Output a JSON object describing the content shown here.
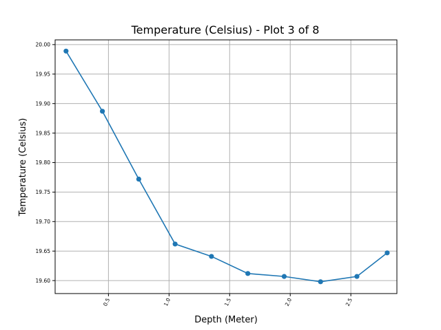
{
  "chart_data": {
    "type": "line",
    "title": "Temperature (Celsius) - Plot 3 of 8",
    "xlabel": "Depth (Meter)",
    "ylabel": "Temperature (Celsius)",
    "xlim": [
      0.06,
      2.88
    ],
    "ylim": [
      19.578,
      20.008
    ],
    "xticks": [
      0.5,
      1.0,
      1.5,
      2.0,
      2.5
    ],
    "xtick_labels": [
      "0.5",
      "1.0",
      "1.5",
      "2.0",
      "2.5"
    ],
    "yticks": [
      19.6,
      19.65,
      19.7,
      19.75,
      19.8,
      19.85,
      19.9,
      19.95,
      20.0
    ],
    "ytick_labels": [
      "19.60",
      "19.65",
      "19.70",
      "19.75",
      "19.80",
      "19.85",
      "19.90",
      "19.95",
      "20.00"
    ],
    "grid": true,
    "series": [
      {
        "color": "#1f77b4",
        "marker": "circle",
        "x": [
          0.15,
          0.45,
          0.75,
          1.05,
          1.35,
          1.65,
          1.95,
          2.25,
          2.55,
          2.8
        ],
        "y": [
          19.989,
          19.887,
          19.772,
          19.662,
          19.641,
          19.612,
          19.607,
          19.598,
          19.607,
          19.647
        ]
      }
    ]
  }
}
